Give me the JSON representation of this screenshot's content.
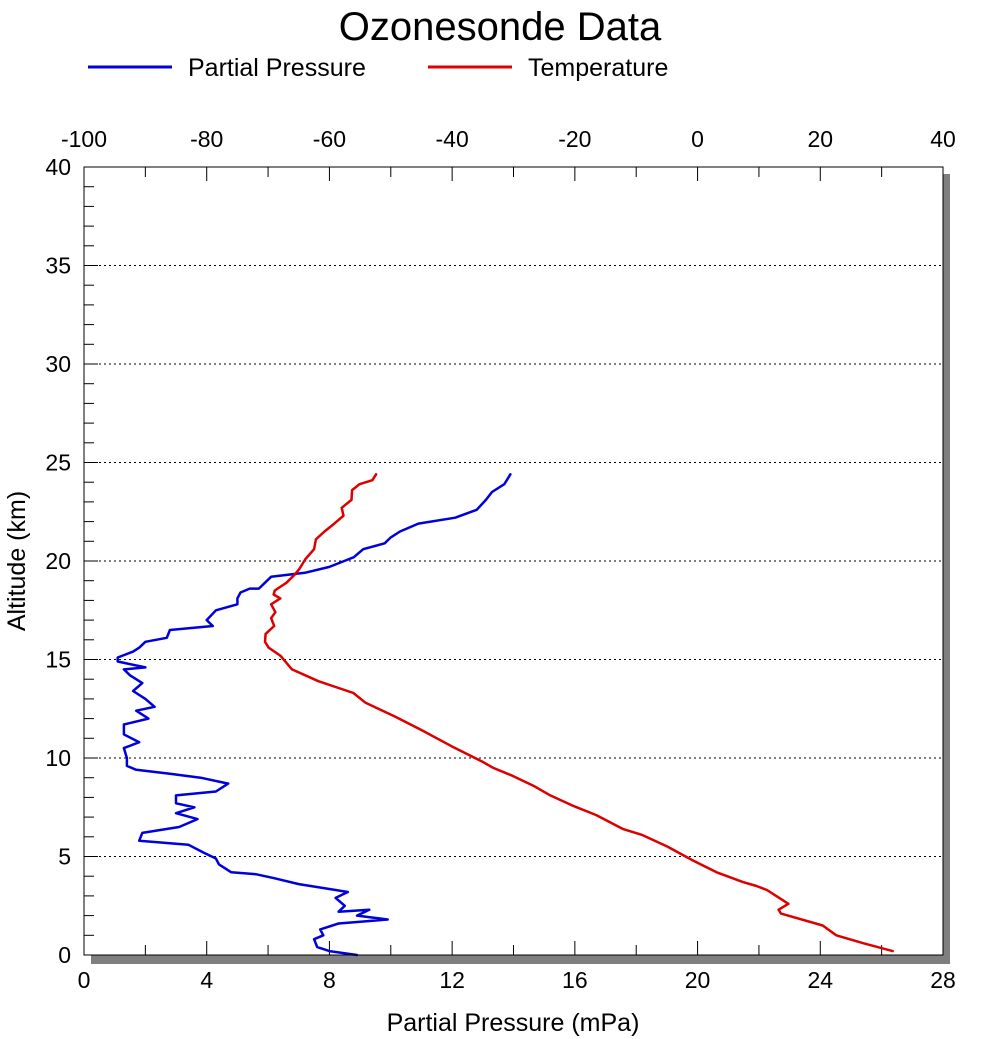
{
  "chart_data": {
    "type": "line",
    "title": "Ozonesonde Data",
    "xlabel": "Partial Pressure (mPa)",
    "ylabel": "Altitude (km)",
    "xlim": [
      0,
      28
    ],
    "ylim": [
      0,
      40
    ],
    "x2lim": [
      -100,
      40
    ],
    "xticks": [
      0,
      4,
      8,
      12,
      16,
      20,
      24,
      28
    ],
    "x2ticks": [
      -100,
      -80,
      -60,
      -40,
      -20,
      0,
      20,
      40
    ],
    "yticks": [
      0,
      5,
      10,
      15,
      20,
      25,
      30,
      35,
      40
    ],
    "grid": "horizontal-dotted",
    "legend_position": "top-left",
    "series": [
      {
        "name": "Partial Pressure",
        "color": "#0000dd",
        "axis": "bottom",
        "points": [
          [
            8.9,
            0.0
          ],
          [
            8.0,
            0.2
          ],
          [
            7.6,
            0.4
          ],
          [
            7.5,
            0.8
          ],
          [
            7.8,
            1.0
          ],
          [
            7.7,
            1.3
          ],
          [
            8.3,
            1.6
          ],
          [
            9.9,
            1.8
          ],
          [
            8.9,
            2.0
          ],
          [
            9.3,
            2.3
          ],
          [
            8.3,
            2.2
          ],
          [
            8.5,
            2.5
          ],
          [
            8.2,
            2.9
          ],
          [
            8.6,
            3.2
          ],
          [
            8.2,
            3.3
          ],
          [
            7.0,
            3.6
          ],
          [
            6.2,
            3.9
          ],
          [
            5.6,
            4.1
          ],
          [
            4.8,
            4.2
          ],
          [
            4.4,
            4.6
          ],
          [
            4.3,
            4.9
          ],
          [
            3.9,
            5.2
          ],
          [
            3.4,
            5.6
          ],
          [
            1.8,
            5.8
          ],
          [
            1.9,
            6.2
          ],
          [
            3.1,
            6.5
          ],
          [
            3.7,
            6.9
          ],
          [
            3.0,
            7.2
          ],
          [
            3.6,
            7.5
          ],
          [
            3.0,
            7.7
          ],
          [
            3.0,
            8.1
          ],
          [
            4.3,
            8.3
          ],
          [
            4.7,
            8.7
          ],
          [
            3.8,
            9.0
          ],
          [
            2.8,
            9.2
          ],
          [
            1.7,
            9.4
          ],
          [
            1.4,
            9.6
          ],
          [
            1.4,
            10.0
          ],
          [
            1.3,
            10.5
          ],
          [
            1.8,
            10.8
          ],
          [
            1.3,
            11.2
          ],
          [
            1.3,
            11.7
          ],
          [
            2.1,
            12.0
          ],
          [
            1.7,
            12.4
          ],
          [
            2.3,
            12.6
          ],
          [
            2.0,
            13.0
          ],
          [
            1.6,
            13.4
          ],
          [
            1.9,
            13.8
          ],
          [
            1.5,
            14.2
          ],
          [
            1.3,
            14.5
          ],
          [
            2.0,
            14.6
          ],
          [
            1.1,
            14.9
          ],
          [
            1.1,
            15.1
          ],
          [
            1.6,
            15.4
          ],
          [
            1.8,
            15.6
          ],
          [
            2.0,
            15.9
          ],
          [
            2.7,
            16.1
          ],
          [
            2.8,
            16.5
          ],
          [
            4.2,
            16.7
          ],
          [
            4.0,
            17.0
          ],
          [
            4.3,
            17.5
          ],
          [
            5.0,
            17.8
          ],
          [
            5.0,
            18.1
          ],
          [
            5.1,
            18.4
          ],
          [
            5.4,
            18.6
          ],
          [
            5.7,
            18.6
          ],
          [
            5.9,
            18.9
          ],
          [
            6.1,
            19.2
          ],
          [
            7.2,
            19.4
          ],
          [
            8.0,
            19.7
          ],
          [
            8.8,
            20.2
          ],
          [
            9.1,
            20.6
          ],
          [
            9.8,
            20.9
          ],
          [
            10.0,
            21.2
          ],
          [
            10.3,
            21.5
          ],
          [
            10.9,
            21.9
          ],
          [
            12.1,
            22.2
          ],
          [
            12.8,
            22.6
          ],
          [
            13.1,
            23.1
          ],
          [
            13.3,
            23.5
          ],
          [
            13.7,
            23.9
          ],
          [
            13.9,
            24.4
          ]
        ]
      },
      {
        "name": "Temperature",
        "color": "#dd0000",
        "axis": "top",
        "points": [
          [
            31.8,
            0.2
          ],
          [
            27.0,
            0.6
          ],
          [
            22.6,
            1.0
          ],
          [
            20.4,
            1.5
          ],
          [
            13.6,
            2.1
          ],
          [
            13.2,
            2.3
          ],
          [
            14.8,
            2.6
          ],
          [
            13.8,
            2.8
          ],
          [
            11.3,
            3.3
          ],
          [
            9.6,
            3.5
          ],
          [
            7.4,
            3.7
          ],
          [
            3.1,
            4.2
          ],
          [
            -0.8,
            4.8
          ],
          [
            -4.9,
            5.5
          ],
          [
            -9.1,
            6.1
          ],
          [
            -12.2,
            6.4
          ],
          [
            -16.5,
            7.1
          ],
          [
            -20.5,
            7.6
          ],
          [
            -24.0,
            8.1
          ],
          [
            -26.8,
            8.6
          ],
          [
            -30.2,
            9.1
          ],
          [
            -33.3,
            9.5
          ],
          [
            -35.0,
            9.8
          ],
          [
            -40.1,
            10.6
          ],
          [
            -44.9,
            11.4
          ],
          [
            -49.3,
            12.1
          ],
          [
            -54.1,
            12.8
          ],
          [
            -56.1,
            13.3
          ],
          [
            -61.8,
            13.9
          ],
          [
            -66.1,
            14.5
          ],
          [
            -68.0,
            15.2
          ],
          [
            -69.9,
            15.6
          ],
          [
            -70.5,
            15.9
          ],
          [
            -70.4,
            16.3
          ],
          [
            -69.0,
            16.7
          ],
          [
            -69.5,
            17.1
          ],
          [
            -68.8,
            17.4
          ],
          [
            -69.5,
            17.8
          ],
          [
            -68.0,
            18.1
          ],
          [
            -69.1,
            18.3
          ],
          [
            -68.9,
            18.5
          ],
          [
            -67.0,
            18.9
          ],
          [
            -65.7,
            19.3
          ],
          [
            -64.9,
            19.6
          ],
          [
            -63.9,
            20.1
          ],
          [
            -62.5,
            20.6
          ],
          [
            -62.2,
            21.1
          ],
          [
            -60.8,
            21.5
          ],
          [
            -59.2,
            21.9
          ],
          [
            -57.7,
            22.3
          ],
          [
            -58.0,
            22.7
          ],
          [
            -56.4,
            23.1
          ],
          [
            -56.3,
            23.6
          ],
          [
            -55.1,
            23.9
          ],
          [
            -53.0,
            24.1
          ],
          [
            -52.4,
            24.4
          ]
        ]
      }
    ]
  }
}
